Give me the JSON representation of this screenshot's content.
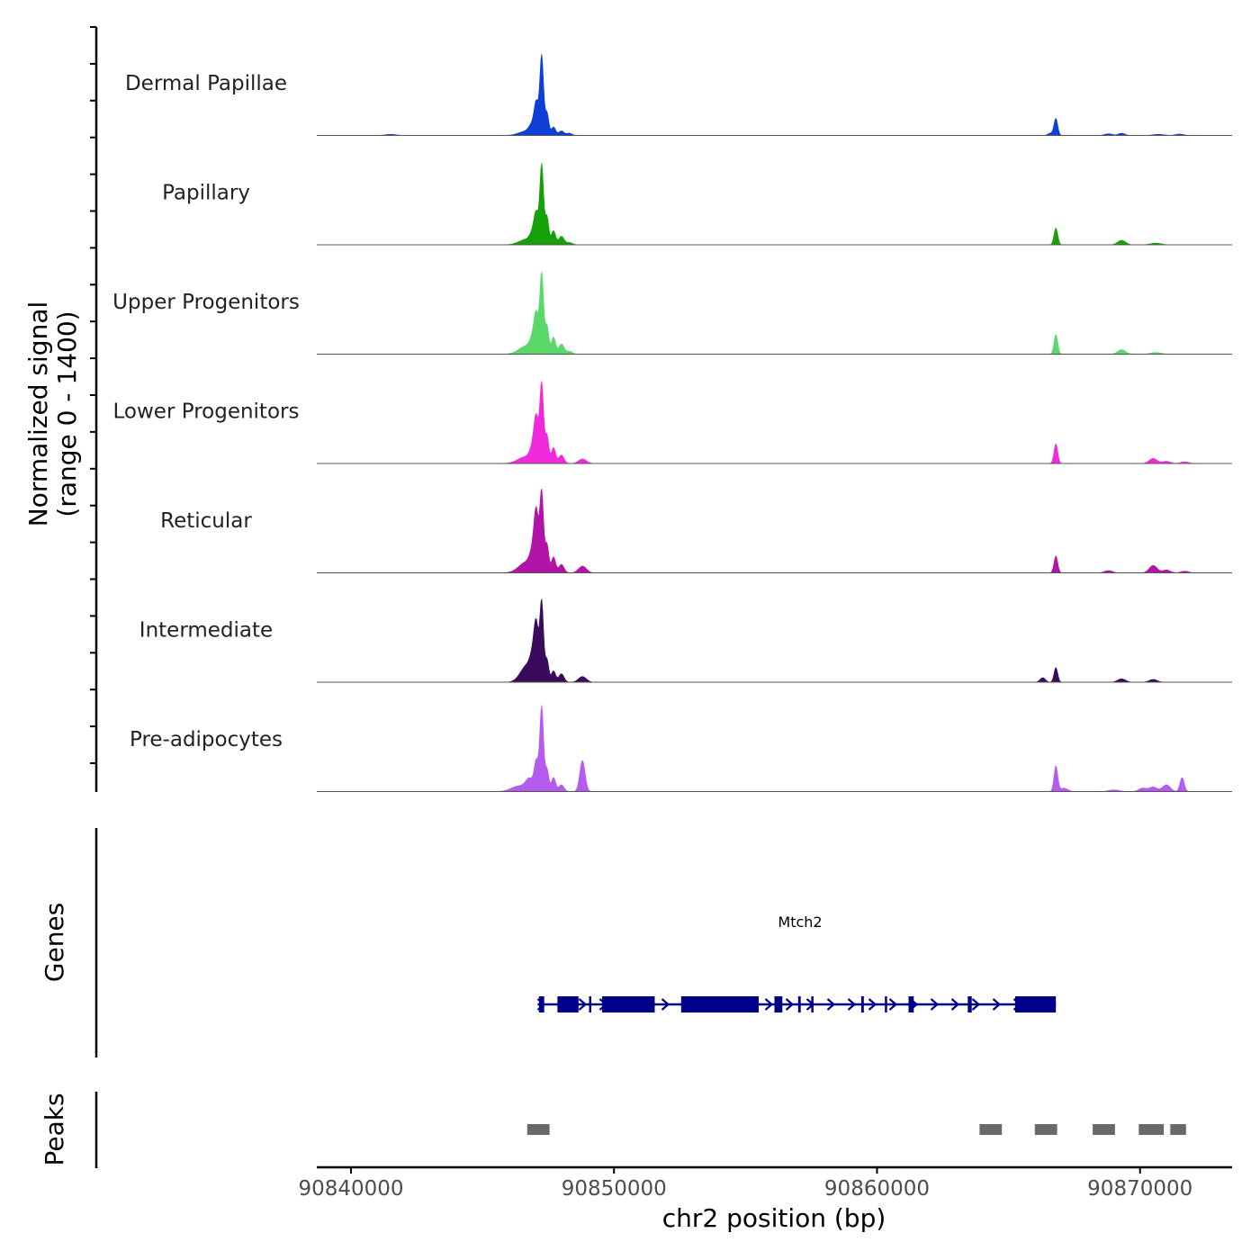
{
  "chart_data": {
    "type": "area",
    "genome": "chr2",
    "xlim": [
      90838700,
      90873500
    ],
    "xticks": [
      90840000,
      90850000,
      90860000,
      90870000
    ],
    "xlabel": "chr2 position (bp)",
    "coverage": {
      "ylabel_line1": "Normalized signal",
      "ylabel_line2": "(range 0 - 1400)",
      "ylim": [
        0,
        1400
      ],
      "tracks": [
        {
          "name": "Dermal Papillae",
          "color": "#0f3fd6",
          "peaks": [
            [
              90846700,
              80,
              300
            ],
            [
              90846900,
              150,
              120
            ],
            [
              90847050,
              500,
              80
            ],
            [
              90847250,
              1400,
              70
            ],
            [
              90847450,
              400,
              70
            ],
            [
              90847700,
              150,
              80
            ],
            [
              90848000,
              80,
              100
            ],
            [
              90848300,
              40,
              100
            ],
            [
              90841500,
              20,
              200
            ],
            [
              90866800,
              300,
              70
            ],
            [
              90866600,
              40,
              100
            ],
            [
              90868800,
              30,
              150
            ],
            [
              90869300,
              40,
              120
            ],
            [
              90870700,
              20,
              200
            ],
            [
              90871500,
              25,
              150
            ]
          ]
        },
        {
          "name": "Papillary",
          "color": "#16a10a",
          "peaks": [
            [
              90846700,
              100,
              300
            ],
            [
              90846950,
              200,
              120
            ],
            [
              90847050,
              400,
              80
            ],
            [
              90847250,
              1400,
              70
            ],
            [
              90847450,
              500,
              70
            ],
            [
              90847700,
              250,
              80
            ],
            [
              90848000,
              150,
              100
            ],
            [
              90848300,
              40,
              120
            ],
            [
              90866800,
              300,
              70
            ],
            [
              90869300,
              80,
              150
            ],
            [
              90870600,
              30,
              200
            ]
          ]
        },
        {
          "name": "Upper Progenitors",
          "color": "#5ad86a",
          "peaks": [
            [
              90846700,
              150,
              300
            ],
            [
              90846950,
              250,
              120
            ],
            [
              90847050,
              500,
              80
            ],
            [
              90847250,
              1400,
              70
            ],
            [
              90847450,
              500,
              70
            ],
            [
              90847700,
              300,
              80
            ],
            [
              90848000,
              180,
              100
            ],
            [
              90848300,
              50,
              120
            ],
            [
              90866800,
              350,
              70
            ],
            [
              90869300,
              80,
              150
            ],
            [
              90870600,
              30,
              200
            ]
          ]
        },
        {
          "name": "Lower Progenitors",
          "color": "#f02adc",
          "peaks": [
            [
              90846650,
              120,
              300
            ],
            [
              90846950,
              300,
              120
            ],
            [
              90847050,
              600,
              80
            ],
            [
              90847250,
              1400,
              70
            ],
            [
              90847450,
              500,
              70
            ],
            [
              90847700,
              280,
              80
            ],
            [
              90848000,
              150,
              100
            ],
            [
              90848800,
              80,
              150
            ],
            [
              90866800,
              350,
              70
            ],
            [
              90870500,
              90,
              150
            ],
            [
              90871000,
              40,
              150
            ],
            [
              90871700,
              30,
              150
            ]
          ]
        },
        {
          "name": "Reticular",
          "color": "#b314a8",
          "peaks": [
            [
              90846700,
              200,
              300
            ],
            [
              90846950,
              350,
              120
            ],
            [
              90847050,
              800,
              80
            ],
            [
              90847250,
              1400,
              70
            ],
            [
              90847450,
              500,
              70
            ],
            [
              90847700,
              280,
              80
            ],
            [
              90848000,
              150,
              100
            ],
            [
              90848800,
              120,
              150
            ],
            [
              90866800,
              300,
              70
            ],
            [
              90868800,
              40,
              150
            ],
            [
              90870500,
              130,
              150
            ],
            [
              90871000,
              50,
              150
            ],
            [
              90871700,
              30,
              150
            ]
          ]
        },
        {
          "name": "Intermediate",
          "color": "#3a0a5c",
          "peaks": [
            [
              90846700,
              300,
              250
            ],
            [
              90846950,
              400,
              120
            ],
            [
              90847050,
              700,
              80
            ],
            [
              90847250,
              1400,
              70
            ],
            [
              90847450,
              400,
              70
            ],
            [
              90847700,
              200,
              80
            ],
            [
              90848000,
              150,
              100
            ],
            [
              90848800,
              100,
              150
            ],
            [
              90866300,
              80,
              100
            ],
            [
              90866800,
              260,
              70
            ],
            [
              90869300,
              60,
              150
            ],
            [
              90870500,
              50,
              150
            ]
          ]
        },
        {
          "name": "Pre-adipocytes",
          "color": "#b55bf0",
          "peaks": [
            [
              90846400,
              100,
              300
            ],
            [
              90846800,
              200,
              150
            ],
            [
              90847050,
              500,
              80
            ],
            [
              90847250,
              1500,
              70
            ],
            [
              90847450,
              400,
              70
            ],
            [
              90847700,
              250,
              80
            ],
            [
              90848000,
              120,
              100
            ],
            [
              90848800,
              550,
              100
            ],
            [
              90866800,
              450,
              70
            ],
            [
              90867100,
              60,
              150
            ],
            [
              90869000,
              30,
              200
            ],
            [
              90870100,
              60,
              150
            ],
            [
              90870500,
              80,
              150
            ],
            [
              90871000,
              120,
              150
            ],
            [
              90871600,
              250,
              80
            ]
          ]
        }
      ]
    },
    "genes": {
      "title": "Genes",
      "strand": "+",
      "color": "#00008b",
      "label": "Mtch2",
      "line": [
        90847100,
        90866800
      ],
      "exons": [
        [
          90847150,
          90847350
        ],
        [
          90847850,
          90848650
        ],
        [
          90849050,
          90849100
        ],
        [
          90849550,
          90851550
        ],
        [
          90852550,
          90855500
        ],
        [
          90856100,
          90856400
        ],
        [
          90857000,
          90857100
        ],
        [
          90857500,
          90857550
        ],
        [
          90859400,
          90859500
        ],
        [
          90860300,
          90860350
        ],
        [
          90861200,
          90861400
        ],
        [
          90863450,
          90863600
        ],
        [
          90865250,
          90866800
        ]
      ]
    },
    "peaks": {
      "title": "Peaks",
      "color": "#696969",
      "regions": [
        [
          90846700,
          90847550
        ],
        [
          90863900,
          90864750
        ],
        [
          90866000,
          90866850
        ],
        [
          90868200,
          90869050
        ],
        [
          90869950,
          90870900
        ],
        [
          90871150,
          90871750
        ]
      ]
    }
  }
}
